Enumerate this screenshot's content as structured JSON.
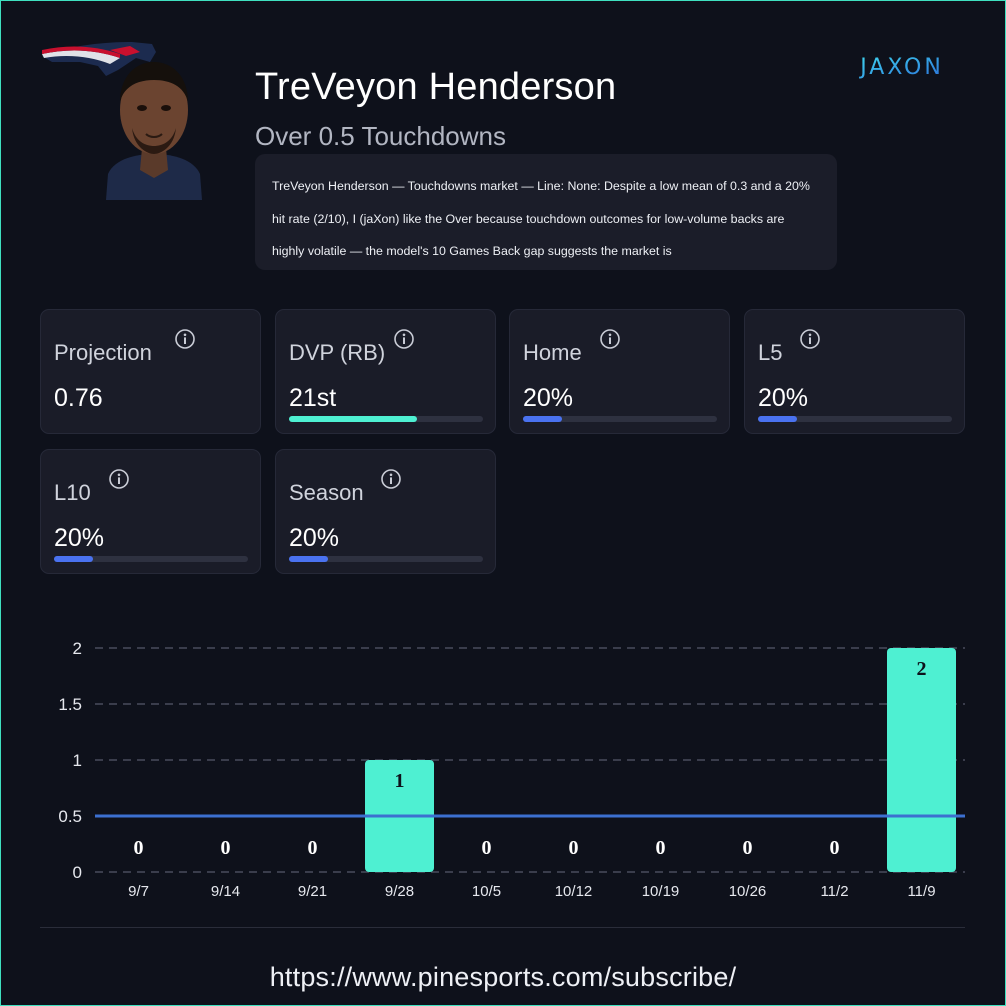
{
  "player": {
    "name": "TreVeyon Henderson",
    "market": "Over 0.5 Touchdowns",
    "analysis": "TreVeyon Henderson — Touchdowns market — Line: None: Despite a low mean of 0.3 and a 20% hit rate (2/10), I (jaXon) like the Over because touchdown outcomes for low-volume backs are highly volatile — the model's 10 Games Back gap suggests the market is"
  },
  "brand": {
    "logo_text": "jaXon"
  },
  "colors": {
    "accent": "#4ef0d2",
    "blue": "#4a72f0",
    "background": "#0e111b",
    "card": "#1a1c28",
    "line": "#3c70d0"
  },
  "stats": {
    "projection": {
      "label": "Projection",
      "value": "0.76"
    },
    "dvp": {
      "label": "DVP (RB)",
      "value": "21st",
      "fill": 0.66
    },
    "home": {
      "label": "Home",
      "value": "20%",
      "fill": 0.2
    },
    "l5": {
      "label": "L5",
      "value": "20%",
      "fill": 0.2
    },
    "l10": {
      "label": "L10",
      "value": "20%",
      "fill": 0.2
    },
    "season": {
      "label": "Season",
      "value": "20%",
      "fill": 0.2
    }
  },
  "chart_data": {
    "type": "bar",
    "categories": [
      "9/7",
      "9/14",
      "9/21",
      "9/28",
      "10/5",
      "10/12",
      "10/19",
      "10/26",
      "11/2",
      "11/9"
    ],
    "values": [
      0,
      0,
      0,
      1,
      0,
      0,
      0,
      0,
      0,
      2
    ],
    "line": 0.5,
    "ylim": [
      0,
      2
    ],
    "yticks": [
      "0",
      "0.5",
      "1",
      "1.5",
      "2"
    ],
    "grid": true
  },
  "footer": {
    "url": "https://www.pinesports.com/subscribe/"
  }
}
